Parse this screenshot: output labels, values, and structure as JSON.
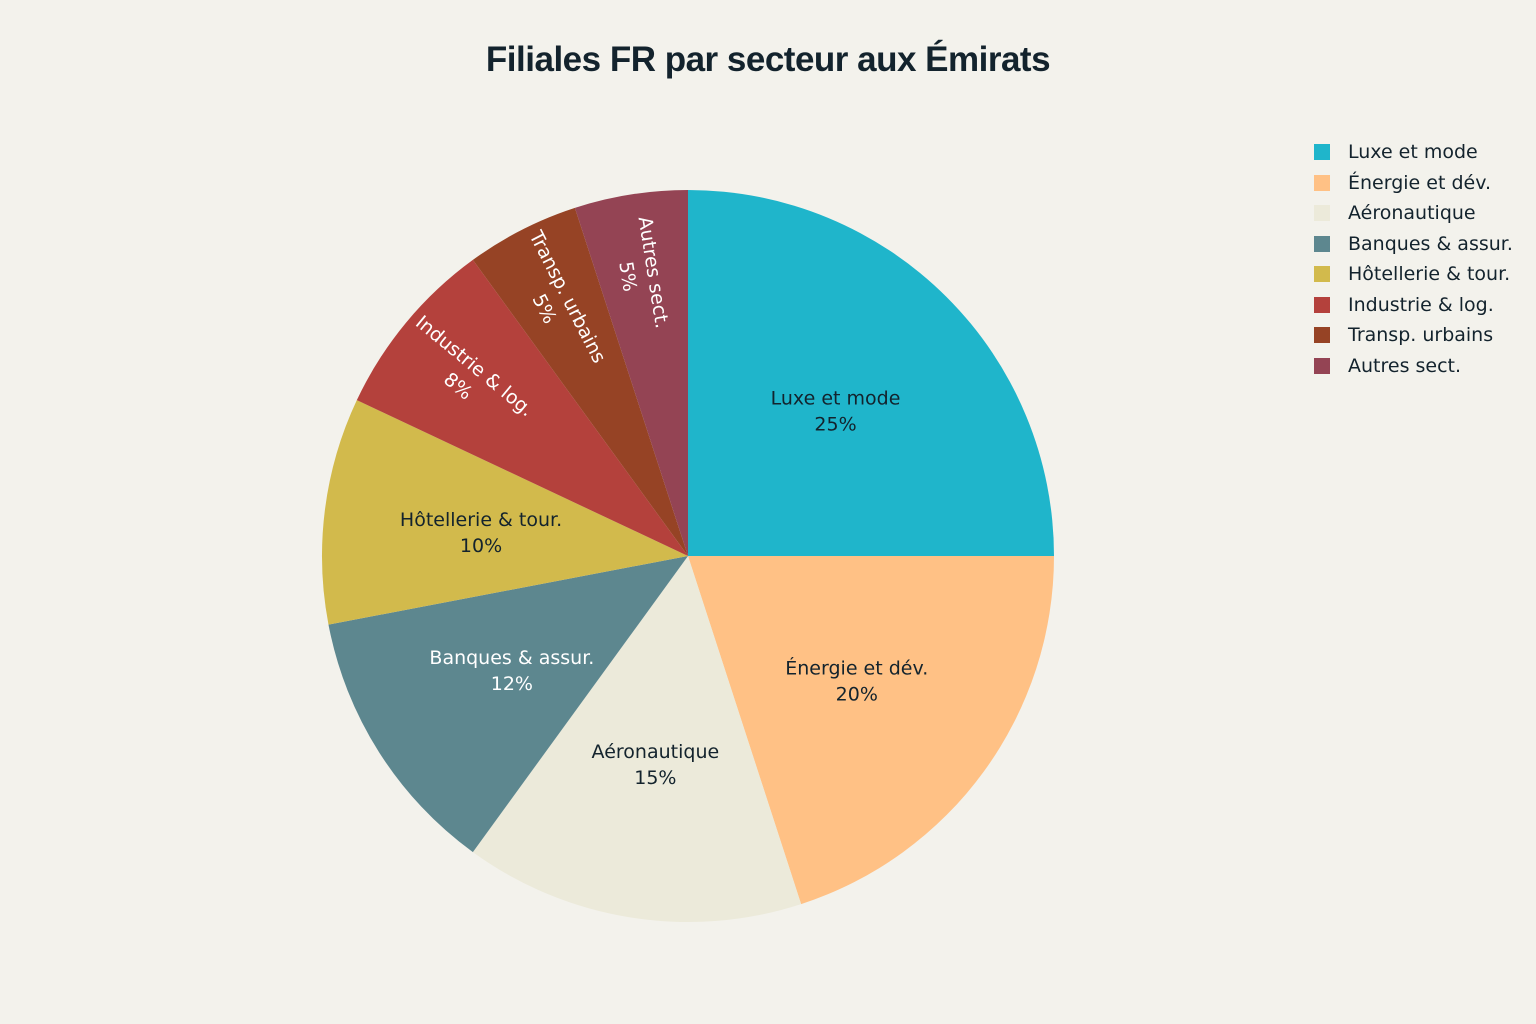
{
  "chart_data": {
    "type": "pie",
    "title": "Filiales FR par secteur aux Émirats",
    "slices": [
      {
        "label": "Luxe et mode",
        "value": 25,
        "display": "25%",
        "color": "#1fb5cb",
        "text_color": "#13232d"
      },
      {
        "label": "Énergie et dév.",
        "value": 20,
        "display": "20%",
        "color": "#ffc185",
        "text_color": "#13232d"
      },
      {
        "label": "Aéronautique",
        "value": 15,
        "display": "15%",
        "color": "#eceada",
        "text_color": "#13232d"
      },
      {
        "label": "Banques & assur.",
        "value": 12,
        "display": "12%",
        "color": "#5d878f",
        "text_color": "#ffffff"
      },
      {
        "label": "Hôtellerie & tour.",
        "value": 10,
        "display": "10%",
        "color": "#d2ba4c",
        "text_color": "#13232d"
      },
      {
        "label": "Industrie & log.",
        "value": 8,
        "display": "8%",
        "color": "#b4413c",
        "text_color": "#ffffff"
      },
      {
        "label": "Transp. urbains",
        "value": 5,
        "display": "5%",
        "color": "#964325",
        "text_color": "#ffffff"
      },
      {
        "label": "Autres sect.",
        "value": 5,
        "display": "5%",
        "color": "#944454",
        "text_color": "#ffffff"
      }
    ],
    "direction": "clockwise",
    "start": "12 o'clock",
    "legend_position": "top-right"
  }
}
